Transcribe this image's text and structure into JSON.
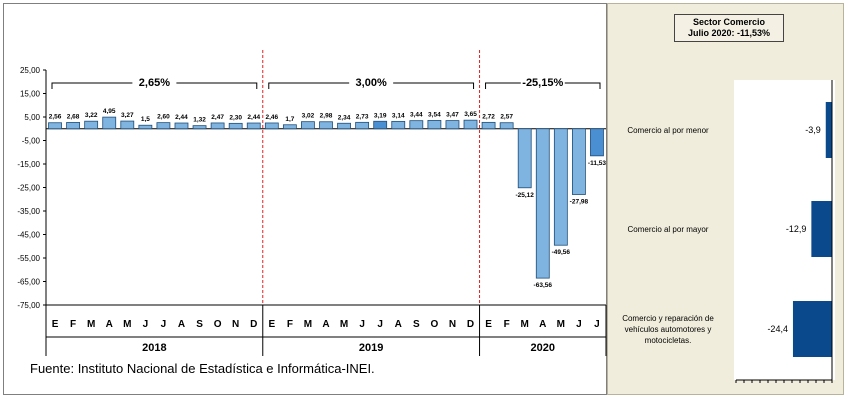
{
  "source": "Fuente: Instituto Nacional de Estadística e Informática-INEI.",
  "chart_data": [
    {
      "type": "bar",
      "ylim": [
        -75,
        25
      ],
      "yticks": [
        "25,00",
        "15,00",
        "5,00",
        "-5,00",
        "-15,00",
        "-25,00",
        "-35,00",
        "-45,00",
        "-55,00",
        "-65,00",
        "-75,00"
      ],
      "ytick_values": [
        25,
        15,
        5,
        -5,
        -15,
        -25,
        -35,
        -45,
        -55,
        -65,
        -75
      ],
      "bar_color": "#7fb3e0",
      "highlight_color": "#4a8fd1",
      "months": [
        "E",
        "F",
        "M",
        "A",
        "M",
        "J",
        "J",
        "A",
        "S",
        "O",
        "N",
        "D",
        "E",
        "F",
        "M",
        "A",
        "M",
        "J",
        "J",
        "A",
        "S",
        "O",
        "N",
        "D",
        "E",
        "F",
        "M",
        "A",
        "M",
        "J",
        "J"
      ],
      "values": [
        2.56,
        2.68,
        3.22,
        4.95,
        3.27,
        1.5,
        2.6,
        2.44,
        1.32,
        2.47,
        2.3,
        2.44,
        2.46,
        1.7,
        3.02,
        2.98,
        2.34,
        2.73,
        3.19,
        3.14,
        3.44,
        3.54,
        3.47,
        3.65,
        2.72,
        2.57,
        -25.12,
        -63.56,
        -49.56,
        -27.98,
        -11.53
      ],
      "labels": [
        "2,56",
        "2,68",
        "3,22",
        "4,95",
        "3,27",
        "1,5",
        "2,60",
        "2,44",
        "1,32",
        "2,47",
        "2,30",
        "2,44",
        "2,46",
        "1,7",
        "3,02",
        "2,98",
        "2,34",
        "2,73",
        "3,19",
        "3,14",
        "3,44",
        "3,54",
        "3,47",
        "3,65",
        "2,72",
        "2,57",
        "-25,12",
        "-63,56",
        "-49,56",
        "-27,98",
        "-11,53"
      ],
      "highlight_indices": [
        18,
        30
      ],
      "years": [
        {
          "label": "2018",
          "start": 0,
          "end": 11,
          "annotation": "2,65%"
        },
        {
          "label": "2019",
          "start": 12,
          "end": 23,
          "annotation": "3,00%"
        },
        {
          "label": "2020",
          "start": 24,
          "end": 30,
          "annotation": "-25,15%"
        }
      ]
    },
    {
      "type": "bar",
      "orientation": "horizontal",
      "title_lines": [
        "Sector Comercio",
        "Julio 2020: -11,53%"
      ],
      "bar_color": "#0a4a8c",
      "categories": [
        [
          "Comercio al por menor"
        ],
        [
          "Comercio al por mayor"
        ],
        [
          "Comercio y reparación de",
          "vehículos automotores y",
          "motocicletas."
        ]
      ],
      "values": [
        -3.9,
        -12.9,
        -24.4
      ],
      "labels": [
        "-3,9",
        "-12,9",
        "-24,4"
      ],
      "xlim": [
        -60,
        0
      ]
    }
  ]
}
